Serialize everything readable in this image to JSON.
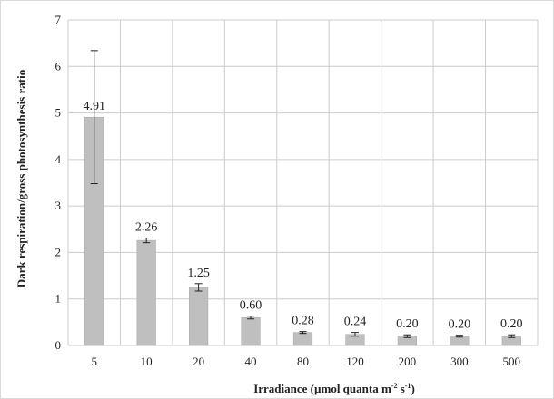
{
  "chart_data": {
    "type": "bar",
    "xlabel_main": "Irradiance (µmol quanta m",
    "xlabel_sup1": "-2",
    "xlabel_mid": " s",
    "xlabel_sup2": "-1",
    "xlabel_end": ")",
    "ylabel": "Dark respiration/gross photosynthesis ratio",
    "categories": [
      "5",
      "10",
      "20",
      "40",
      "80",
      "120",
      "200",
      "300",
      "500"
    ],
    "values": [
      4.91,
      2.26,
      1.25,
      0.6,
      0.28,
      0.24,
      0.2,
      0.2,
      0.2
    ],
    "value_labels": [
      "4.91",
      "2.26",
      "1.25",
      "0.60",
      "0.28",
      "0.24",
      "0.20",
      "0.20",
      "0.20"
    ],
    "errors": [
      1.43,
      0.05,
      0.08,
      0.03,
      0.02,
      0.04,
      0.03,
      0.02,
      0.03
    ],
    "ylim": [
      0,
      7
    ],
    "yticks": [
      "0",
      "1",
      "2",
      "3",
      "4",
      "5",
      "6",
      "7"
    ],
    "grid": true,
    "bar_color": "#bfbfbf",
    "grid_color": "#cccccc"
  }
}
